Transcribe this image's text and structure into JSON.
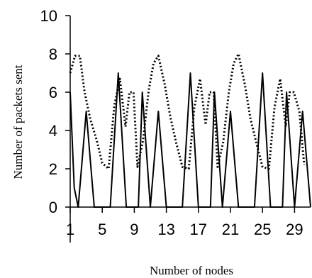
{
  "chart_data": {
    "type": "line",
    "title": "",
    "xlabel": "Number of nodes",
    "ylabel": "Number of packets sent",
    "xlim": [
      1,
      31
    ],
    "ylim": [
      0,
      10
    ],
    "x_ticks": [
      1,
      5,
      9,
      13,
      17,
      21,
      25,
      29
    ],
    "x_tick_labels": [
      "1",
      "5",
      "9",
      "13",
      "17",
      "21",
      "25",
      "29"
    ],
    "y_ticks": [
      0,
      2,
      4,
      6,
      8,
      10
    ],
    "y_tick_labels": [
      "0",
      "2",
      "4",
      "6",
      "8",
      "10"
    ],
    "grid": false,
    "legend": "none",
    "series": [
      {
        "style": "solid",
        "color": "#000000",
        "points": [
          [
            1,
            6
          ],
          [
            1.5,
            1
          ],
          [
            2,
            0
          ],
          [
            3,
            5
          ],
          [
            4,
            0
          ],
          [
            5,
            0
          ],
          [
            5.5,
            0
          ],
          [
            6,
            0
          ],
          [
            7,
            7
          ],
          [
            8,
            0
          ],
          [
            9,
            0
          ],
          [
            9.5,
            0
          ],
          [
            10,
            6
          ],
          [
            11,
            0
          ],
          [
            12,
            5
          ],
          [
            13,
            0
          ],
          [
            14,
            0
          ],
          [
            14.5,
            0
          ],
          [
            15,
            0
          ],
          [
            16,
            7
          ],
          [
            17,
            0
          ],
          [
            18,
            0
          ],
          [
            18.5,
            0
          ],
          [
            19,
            6
          ],
          [
            20,
            0
          ],
          [
            21,
            5
          ],
          [
            22,
            0
          ],
          [
            23,
            0
          ],
          [
            23.5,
            0
          ],
          [
            24,
            0
          ],
          [
            25,
            7
          ],
          [
            26,
            0
          ],
          [
            27,
            0
          ],
          [
            27.5,
            0
          ],
          [
            28,
            6
          ],
          [
            29,
            0
          ],
          [
            30,
            5
          ],
          [
            31,
            0
          ]
        ]
      },
      {
        "style": "dotted",
        "color": "#000000",
        "points": [
          [
            1,
            7
          ],
          [
            1.6,
            7.9
          ],
          [
            2.2,
            7.9
          ],
          [
            2.8,
            6
          ],
          [
            3.5,
            4.6
          ],
          [
            4.3,
            3.5
          ],
          [
            5,
            2.3
          ],
          [
            5.8,
            2
          ],
          [
            6.5,
            5.3
          ],
          [
            7.2,
            6.7
          ],
          [
            7.9,
            4.2
          ],
          [
            8.4,
            6
          ],
          [
            8.9,
            6
          ],
          [
            9.4,
            2.1
          ],
          [
            10.1,
            3.5
          ],
          [
            10.8,
            6.1
          ],
          [
            11.4,
            7.5
          ],
          [
            12,
            7.9
          ],
          [
            12.8,
            6.4
          ],
          [
            13.5,
            4.7
          ],
          [
            14.2,
            3.4
          ],
          [
            15,
            2.1
          ],
          [
            15.8,
            2
          ],
          [
            16.5,
            5.2
          ],
          [
            17.2,
            6.7
          ],
          [
            17.9,
            4.3
          ],
          [
            18.4,
            6
          ],
          [
            18.9,
            6
          ],
          [
            19.4,
            2.1
          ],
          [
            20.1,
            3.4
          ],
          [
            20.8,
            6
          ],
          [
            21.4,
            7.5
          ],
          [
            22,
            8
          ],
          [
            22.8,
            6.4
          ],
          [
            23.5,
            4.6
          ],
          [
            24.2,
            3.4
          ],
          [
            25,
            2.1
          ],
          [
            25.8,
            2
          ],
          [
            26.5,
            5.2
          ],
          [
            27.2,
            6.7
          ],
          [
            27.9,
            4.2
          ],
          [
            28.4,
            6
          ],
          [
            28.9,
            6
          ],
          [
            29.6,
            5
          ],
          [
            30.2,
            2.2
          ]
        ]
      }
    ]
  }
}
